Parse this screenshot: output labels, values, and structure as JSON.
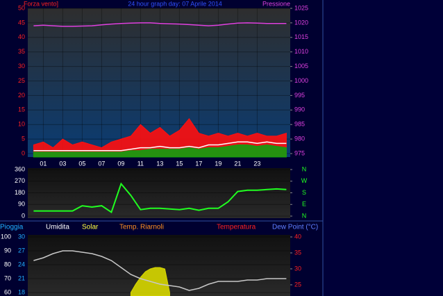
{
  "chart_data": [
    {
      "type": "line",
      "title": "24 hour graph day: 07 Aprile 2014",
      "ylabel": "Forza vento]",
      "y2label": "Pressione",
      "x": [
        0,
        1,
        2,
        3,
        4,
        5,
        6,
        7,
        8,
        9,
        10,
        11,
        12,
        13,
        14,
        15,
        16,
        17,
        18,
        19,
        20,
        21,
        22,
        23,
        24,
        25,
        26
      ],
      "xlim": [
        -0.6,
        26.4
      ],
      "xticks": [
        {
          "value": 1,
          "label": "01"
        },
        {
          "value": 3,
          "label": "03"
        },
        {
          "value": 5,
          "label": "05"
        },
        {
          "value": 7,
          "label": "07"
        },
        {
          "value": 9,
          "label": "09"
        },
        {
          "value": 11,
          "label": "11"
        },
        {
          "value": 13,
          "label": "13"
        },
        {
          "value": 15,
          "label": "15"
        },
        {
          "value": 17,
          "label": "17"
        },
        {
          "value": 19,
          "label": "19"
        },
        {
          "value": 21,
          "label": "21"
        },
        {
          "value": 23,
          "label": "23"
        }
      ],
      "ylim": [
        0,
        50
      ],
      "yticks": [
        0,
        5,
        10,
        15,
        20,
        25,
        30,
        35,
        40,
        45,
        50
      ],
      "y2lim": [
        975,
        1025
      ],
      "y2ticks": [
        975,
        980,
        985,
        990,
        995,
        1000,
        1005,
        1010,
        1015,
        1020,
        1025
      ],
      "grid": true,
      "series": [
        {
          "style": "area",
          "color": "#ff1010",
          "values": [
            3,
            4,
            2,
            5,
            3,
            4,
            3,
            2,
            4,
            5,
            6,
            10,
            7,
            9,
            6,
            8,
            12,
            7,
            6,
            7,
            6,
            7,
            6,
            7,
            6,
            6,
            7
          ]
        },
        {
          "style": "area",
          "color": "#10a010",
          "values": [
            0.5,
            0.5,
            0.5,
            0.5,
            0.5,
            0.5,
            0.5,
            0.5,
            0.5,
            0.5,
            1,
            1,
            1.5,
            1.5,
            1.5,
            1.5,
            2,
            1.5,
            2,
            2,
            2.5,
            3,
            3,
            2.5,
            3,
            2.5,
            2
          ]
        },
        {
          "style": "line",
          "color": "#ffffff",
          "values": [
            1,
            1,
            1,
            1,
            1,
            1,
            1,
            1,
            1,
            1,
            1.5,
            2,
            2,
            2.5,
            2,
            2,
            2.5,
            2,
            3,
            3,
            3.5,
            4,
            4,
            3.5,
            4,
            3.5,
            3.5
          ]
        },
        {
          "style": "line",
          "color": "#e040e0",
          "axis": "y2",
          "values": [
            1019,
            1019.2,
            1019,
            1018.8,
            1018.8,
            1018.9,
            1019,
            1019.3,
            1019.6,
            1019.8,
            1019.9,
            1020,
            1020,
            1019.8,
            1019.7,
            1019.6,
            1019.4,
            1019.2,
            1019,
            1019.2,
            1019.6,
            1019.9,
            1020,
            1019.9,
            1019.8,
            1019.8,
            1019.8
          ]
        }
      ]
    },
    {
      "type": "line",
      "x": [
        0,
        1,
        2,
        3,
        4,
        5,
        6,
        7,
        8,
        9,
        10,
        11,
        12,
        13,
        14,
        15,
        16,
        17,
        18,
        19,
        20,
        21,
        22,
        23,
        24,
        25,
        26
      ],
      "xlim": [
        -0.6,
        26.4
      ],
      "ylim": [
        0,
        360
      ],
      "yticks": [
        0,
        90,
        180,
        270,
        360
      ],
      "y2ticks": [
        {
          "value": 360,
          "label": "N"
        },
        {
          "value": 270,
          "label": "W"
        },
        {
          "value": 180,
          "label": "S"
        },
        {
          "value": 90,
          "label": "E"
        },
        {
          "value": 0,
          "label": "N"
        }
      ],
      "series": [
        {
          "style": "line",
          "color": "#20ff20",
          "values": [
            40,
            40,
            40,
            40,
            40,
            80,
            70,
            80,
            30,
            250,
            160,
            50,
            60,
            60,
            55,
            50,
            60,
            45,
            60,
            60,
            110,
            190,
            200,
            200,
            205,
            210,
            205
          ]
        }
      ]
    },
    {
      "type": "line",
      "labels": [
        {
          "text": "Pioggia",
          "color": "#20b0ff"
        },
        {
          "text": "Umidita",
          "color": "#ffffff"
        },
        {
          "text": "Solar",
          "color": "#ffff40"
        },
        {
          "text": "Temp. Riarnoli",
          "color": "#ff9020"
        },
        {
          "text": "Temperatura",
          "color": "#ff2020"
        },
        {
          "text": "Dew Point (°C)",
          "color": "#6080ff"
        }
      ],
      "x": [
        0,
        1,
        2,
        3,
        4,
        5,
        6,
        7,
        8,
        9,
        10,
        11,
        12,
        13,
        14,
        15,
        16,
        17,
        18,
        19,
        20,
        21,
        22,
        23,
        24,
        25,
        26
      ],
      "xlim": [
        -0.6,
        26.4
      ],
      "ylim": [
        57.5,
        100
      ],
      "yticks": [
        100,
        90,
        80,
        70,
        60
      ],
      "rain_ylim": [
        17.25,
        30
      ],
      "rain_yticks": [
        30,
        27,
        24,
        21,
        18
      ],
      "y2lim": [
        21.5,
        40
      ],
      "y2ticks": [
        40,
        35,
        30,
        25
      ],
      "series": [
        {
          "style": "area",
          "color": "#d8d800",
          "x": [
            10,
            10.5,
            11,
            11.5,
            12,
            12.5,
            13,
            13.5,
            14
          ],
          "values": [
            60,
            66,
            71,
            75,
            77,
            78,
            78,
            77,
            60
          ]
        },
        {
          "style": "line",
          "color": "#c8c8c8",
          "values": [
            83,
            85,
            88,
            90,
            90,
            89,
            88,
            86,
            83,
            78,
            73,
            70,
            68,
            66,
            65,
            64,
            61.5,
            63,
            66,
            68,
            68,
            68,
            69,
            69,
            70,
            70,
            70
          ]
        }
      ]
    }
  ]
}
